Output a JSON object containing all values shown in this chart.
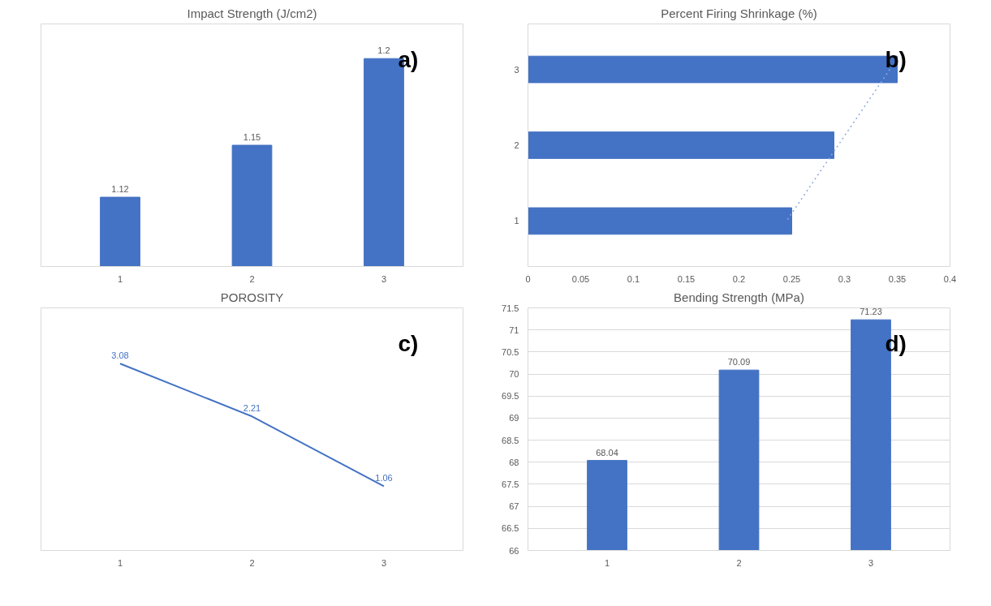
{
  "chart_data": [
    {
      "type": "bar",
      "title": "Impact Strength (J/cm2)",
      "annotations": [
        "a)"
      ],
      "categories": [
        "1",
        "2",
        "3"
      ],
      "values": [
        1.12,
        1.15,
        1.2
      ],
      "color": "#4472c4",
      "ylim": [
        1.08,
        1.22
      ],
      "data_labels": true,
      "tick_labels": "x"
    },
    {
      "type": "bar",
      "orientation": "horizontal",
      "title": "Percent Firing Shrinkage (%)",
      "annotations": [
        "b)"
      ],
      "categories": [
        "3",
        "2",
        "1"
      ],
      "series": [
        {
          "type": "bar",
          "color": "#4472c4",
          "values": [
            0.35,
            0.29,
            0.25
          ]
        },
        {
          "type": "line",
          "color": "#8fa9dc",
          "line_style": "dotted",
          "values": [
            0.343,
            0.294,
            0.245
          ]
        }
      ],
      "xlim": [
        0,
        0.4
      ],
      "xticks": [
        0,
        0.05,
        0.1,
        0.15,
        0.2,
        0.25,
        0.3,
        0.35,
        0.4
      ]
    },
    {
      "type": "line",
      "title": "POROSITY",
      "annotations": [
        "c)"
      ],
      "categories": [
        "1",
        "2",
        "3"
      ],
      "values": [
        3.08,
        2.21,
        1.06
      ],
      "color": "#4472c4",
      "ylim": [
        0,
        4
      ],
      "data_labels": true,
      "tick_labels": "x"
    },
    {
      "type": "bar",
      "title": "Bending Strength (MPa)",
      "annotations": [
        "d)"
      ],
      "categories": [
        "1",
        "2",
        "3"
      ],
      "values": [
        68.04,
        70.09,
        71.23
      ],
      "color": "#4472c4",
      "ylim": [
        66,
        71.5
      ],
      "yticks": [
        66,
        66.5,
        67,
        67.5,
        68,
        68.5,
        69,
        69.5,
        70,
        70.5,
        71,
        71.5
      ],
      "grid": "y",
      "data_labels": true
    }
  ]
}
